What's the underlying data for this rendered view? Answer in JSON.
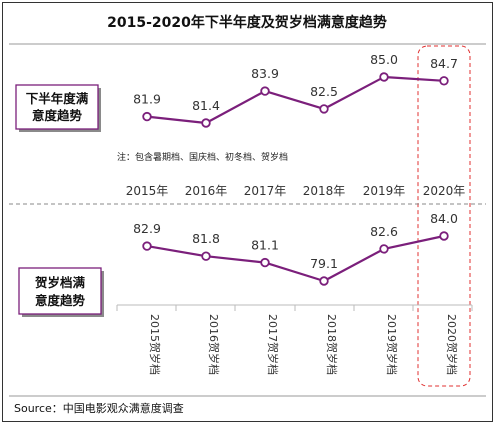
{
  "chart_data": {
    "type": "line",
    "title": "2015-2020年下半年度及贺岁档满意度趋势",
    "categories": [
      "2015年",
      "2016年",
      "2017年",
      "2018年",
      "2019年",
      "2020年"
    ],
    "series": [
      {
        "name": "下半年度满意度趋势",
        "values": [
          81.9,
          81.4,
          83.9,
          82.5,
          85.0,
          84.7
        ]
      },
      {
        "name": "贺岁档满意度趋势",
        "values": [
          82.9,
          81.8,
          81.1,
          79.1,
          82.6,
          84.0
        ]
      }
    ],
    "second_axis_labels": [
      "2015贺岁档",
      "2016贺岁档",
      "2017贺岁档",
      "2018贺岁档",
      "2019贺岁档",
      "2020贺岁档"
    ],
    "note": "注：包含暑期档、国庆档、初冬档、贺岁档",
    "source": "Source：中国电影观众满意度调查",
    "highlight": "2020年",
    "line_color": "#7b1f7b",
    "accent_color": "#e03030"
  }
}
